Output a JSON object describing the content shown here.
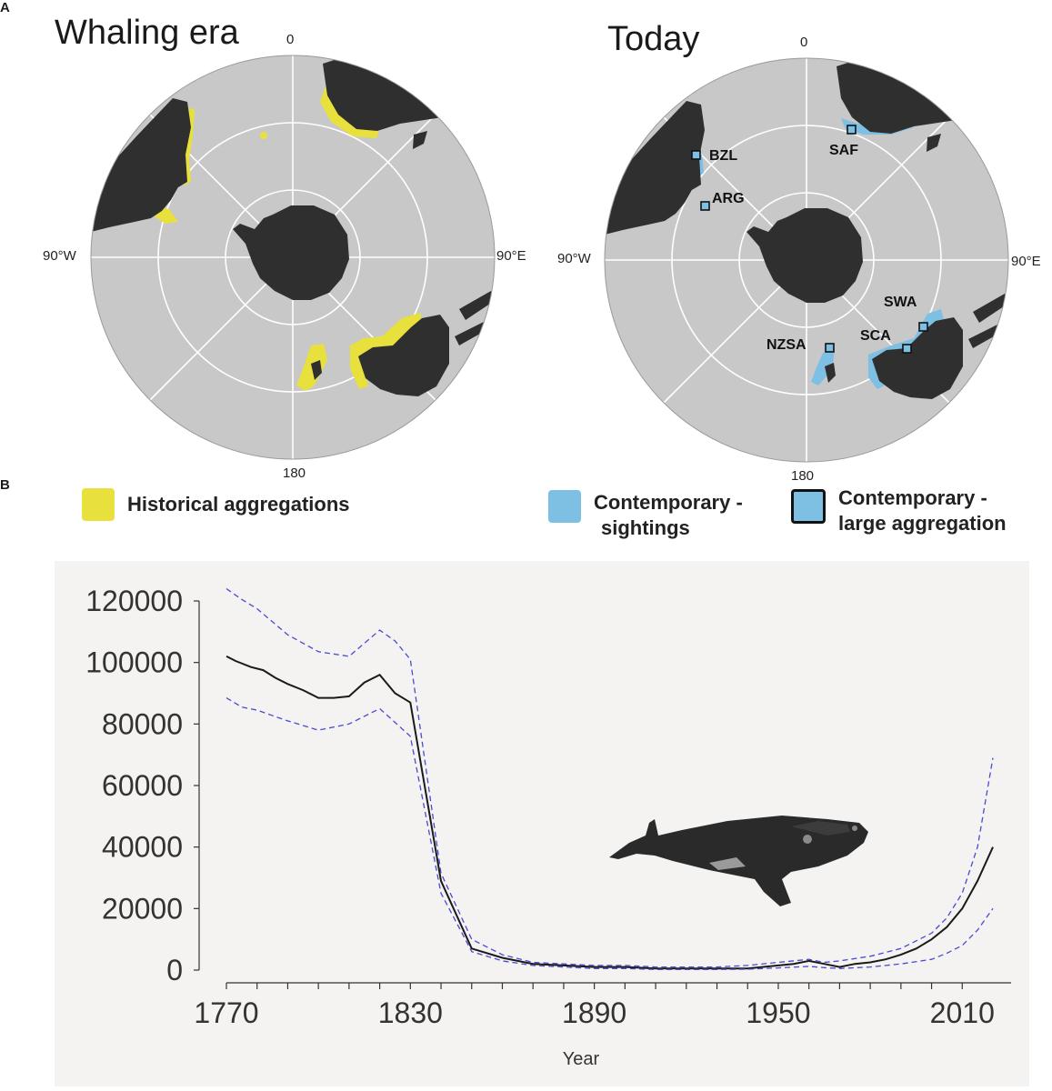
{
  "panels": {
    "a_letter": "A",
    "b_letter": "B"
  },
  "map_left": {
    "title": "Whaling era",
    "deg_top": "0",
    "deg_left": "90°W",
    "deg_right": "90°E",
    "deg_bottom": "180"
  },
  "map_right": {
    "title": "Today",
    "deg_top": "0",
    "deg_left": "90°W",
    "deg_right": "90°E",
    "deg_bottom": "180",
    "sites": [
      "BZL",
      "ARG",
      "SAF",
      "SWA",
      "SCA",
      "NZSA"
    ]
  },
  "legend": {
    "historical": "Historical aggregations",
    "contemporary_sightings_line1": "Contemporary -",
    "contemporary_sightings_line2": "sightings",
    "contemporary_large_line1": "Contemporary -",
    "contemporary_large_line2": "large aggregation"
  },
  "colors": {
    "ocean": "#c8c8c8",
    "land": "#2f2f2f",
    "historical": "#e8e03c",
    "contemporary": "#7ec0e4",
    "chart_bg": "#f4f3f1",
    "line": "#1a1a1a",
    "ci": "#4a4ad0"
  },
  "chart_data": {
    "type": "line",
    "xlabel": "Year",
    "ylabel": "",
    "xlim": [
      1770,
      2020
    ],
    "ylim": [
      0,
      120000
    ],
    "x_ticks": [
      1770,
      1830,
      1890,
      1950,
      2010
    ],
    "y_ticks": [
      0,
      20000,
      40000,
      60000,
      80000,
      100000,
      120000
    ],
    "series": [
      {
        "style": "solid",
        "x": [
          1770,
          1773,
          1778,
          1782,
          1786,
          1790,
          1795,
          1800,
          1805,
          1810,
          1815,
          1820,
          1825,
          1830,
          1840,
          1850,
          1860,
          1870,
          1880,
          1890,
          1900,
          1910,
          1920,
          1930,
          1940,
          1950,
          1955,
          1960,
          1965,
          1970,
          1975,
          1980,
          1985,
          1990,
          1995,
          2000,
          2005,
          2010,
          2015,
          2020
        ],
        "y": [
          102000,
          100500,
          98500,
          97500,
          95000,
          93000,
          91000,
          88500,
          88500,
          89000,
          93500,
          96000,
          90000,
          87000,
          29000,
          7000,
          4000,
          2000,
          1500,
          1000,
          1000,
          500,
          500,
          500,
          500,
          1500,
          2000,
          3000,
          2000,
          1000,
          2000,
          2500,
          3500,
          5000,
          7000,
          10000,
          14000,
          20000,
          29000,
          40000
        ]
      },
      {
        "style": "dashed",
        "x": [
          1770,
          1775,
          1780,
          1790,
          1800,
          1810,
          1820,
          1825,
          1830,
          1840,
          1850,
          1860,
          1870,
          1880,
          1890,
          1900,
          1910,
          1920,
          1930,
          1940,
          1950,
          1960,
          1965,
          1970,
          1980,
          1990,
          2000,
          2005,
          2010,
          2015,
          2020
        ],
        "y": [
          124000,
          120500,
          117500,
          109000,
          103500,
          102000,
          110500,
          107000,
          101000,
          31500,
          10000,
          5000,
          2500,
          2000,
          1500,
          1500,
          1000,
          1000,
          1000,
          1500,
          2500,
          3500,
          2500,
          3000,
          4500,
          7000,
          12000,
          17000,
          25000,
          40000,
          69000
        ]
      },
      {
        "style": "dashed",
        "x": [
          1770,
          1775,
          1780,
          1790,
          1800,
          1810,
          1820,
          1825,
          1830,
          1840,
          1850,
          1860,
          1870,
          1880,
          1890,
          1900,
          1910,
          1920,
          1930,
          1940,
          1950,
          1960,
          1965,
          1970,
          1980,
          1990,
          2000,
          2005,
          2010,
          2015,
          2020
        ],
        "y": [
          88500,
          85500,
          84500,
          81000,
          78000,
          80000,
          85000,
          80500,
          76000,
          25000,
          6000,
          3000,
          1500,
          1000,
          500,
          500,
          200,
          200,
          200,
          300,
          700,
          1200,
          800,
          500,
          1000,
          2000,
          3500,
          5500,
          8000,
          13000,
          20000
        ]
      }
    ]
  }
}
